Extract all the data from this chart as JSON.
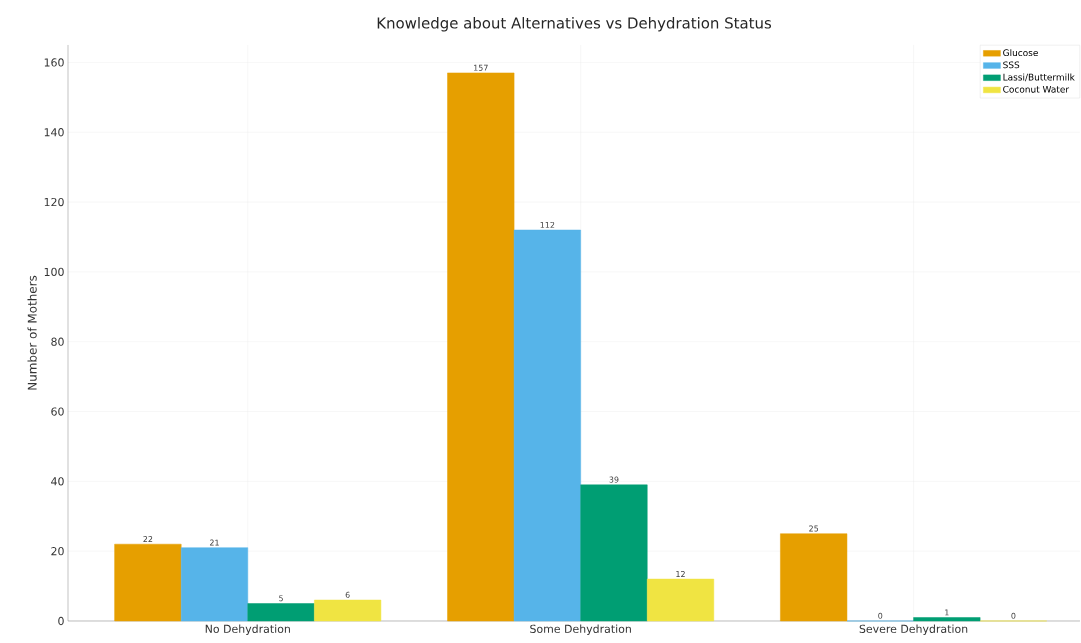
{
  "chart_data": {
    "type": "bar",
    "title": "Knowledge about Alternatives vs Dehydration Status",
    "ylabel": "Number of Mothers",
    "categories": [
      "No Dehydration",
      "Some Dehydration",
      "Severe Dehydration"
    ],
    "series": [
      {
        "name": "Glucose",
        "color": "#e69f00",
        "values": [
          22,
          157,
          25
        ]
      },
      {
        "name": "SSS",
        "color": "#56b4e9",
        "values": [
          21,
          112,
          0
        ]
      },
      {
        "name": "Lassi/Buttermilk",
        "color": "#009e73",
        "values": [
          5,
          39,
          1
        ]
      },
      {
        "name": "Coconut Water",
        "color": "#f0e442",
        "values": [
          6,
          12,
          0
        ]
      }
    ],
    "ylim": [
      0,
      165
    ],
    "yticks": [
      0,
      20,
      40,
      60,
      80,
      100,
      120,
      140,
      160
    ],
    "grid": true,
    "legend": "top right",
    "data_labels": true
  }
}
